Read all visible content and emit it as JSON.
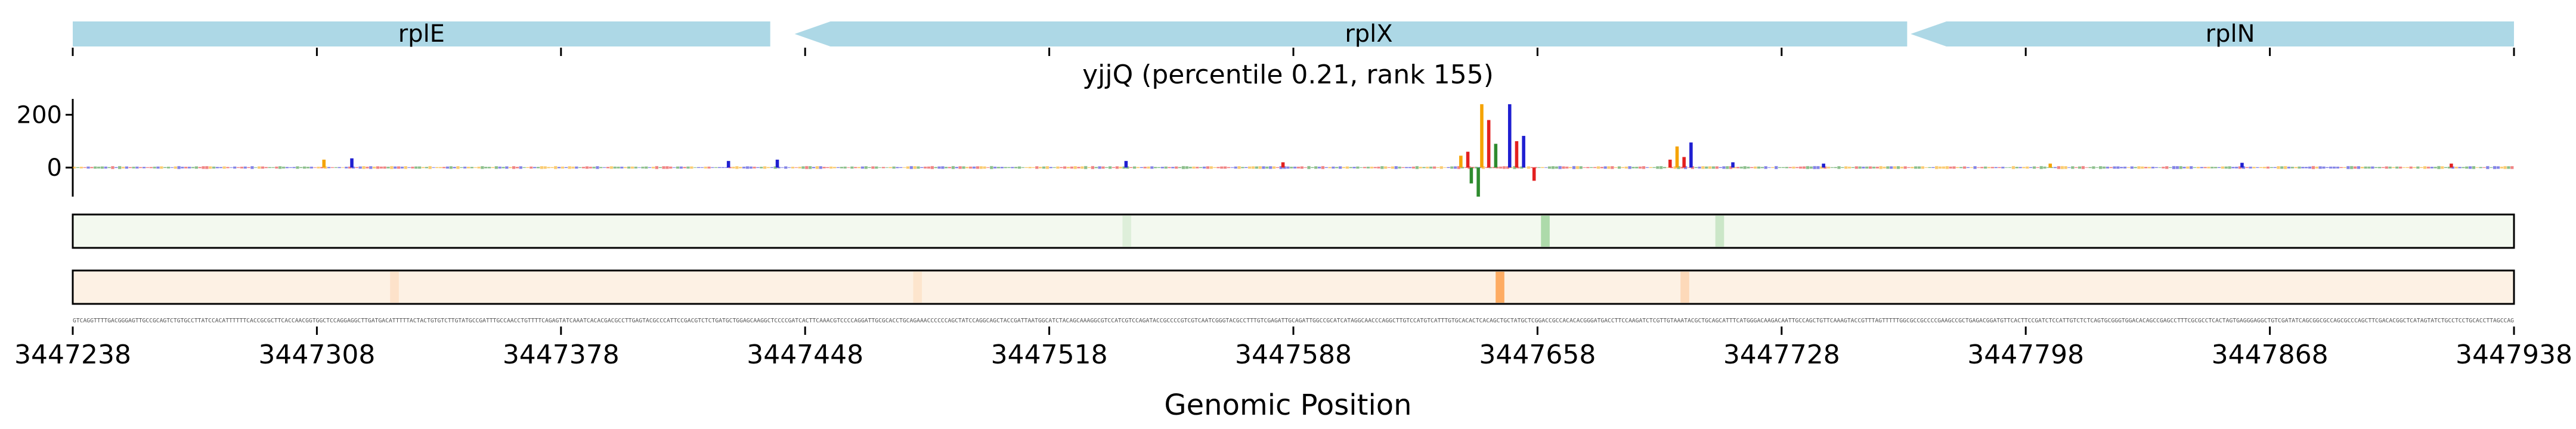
{
  "chart_data": {
    "type": "sequence-logo-track",
    "title": "yjjQ (percentile 0.21, rank 155)",
    "xlabel": "Genomic Position",
    "xlim": [
      3447238,
      3447938
    ],
    "xticks": [
      3447238,
      3447308,
      3447378,
      3447448,
      3447518,
      3447588,
      3447658,
      3447728,
      3447798,
      3447868,
      3447938
    ],
    "genes": [
      {
        "name": "rplE",
        "start": 3447238,
        "end": 3447438,
        "strand": "+"
      },
      {
        "name": "rplX",
        "start": 3447445,
        "end": 3447764,
        "strand": "-"
      },
      {
        "name": "rplN",
        "start": 3447765,
        "end": 3447938,
        "strand": "-"
      }
    ],
    "gene_ticks": [
      3447238,
      3447308,
      3447378,
      3447448,
      3447518,
      3447588,
      3447658,
      3447728,
      3447798,
      3447868,
      3447938
    ],
    "ylim": [
      -110,
      260
    ],
    "yticks": [
      0,
      200
    ],
    "bases": {
      "A": "#2e8b2e",
      "C": "#1f1fd1",
      "G": "#f5a300",
      "T": "#e32020"
    },
    "peaks": [
      {
        "x": 3447642,
        "value": 240,
        "base": "G"
      },
      {
        "x": 3447644,
        "value": 180,
        "base": "T"
      },
      {
        "x": 3447650,
        "value": 240,
        "base": "C"
      },
      {
        "x": 3447654,
        "value": 120,
        "base": "C"
      },
      {
        "x": 3447652,
        "value": 100,
        "base": "T"
      },
      {
        "x": 3447646,
        "value": 90,
        "base": "A"
      },
      {
        "x": 3447638,
        "value": 60,
        "base": "T"
      },
      {
        "x": 3447636,
        "value": 45,
        "base": "G"
      },
      {
        "x": 3447641,
        "value": -110,
        "base": "A"
      },
      {
        "x": 3447639,
        "value": -60,
        "base": "A"
      },
      {
        "x": 3447657,
        "value": -50,
        "base": "T"
      },
      {
        "x": 3447698,
        "value": 80,
        "base": "G"
      },
      {
        "x": 3447702,
        "value": 95,
        "base": "C"
      },
      {
        "x": 3447700,
        "value": 40,
        "base": "T"
      },
      {
        "x": 3447696,
        "value": 30,
        "base": "T"
      },
      {
        "x": 3447310,
        "value": 30,
        "base": "G"
      },
      {
        "x": 3447318,
        "value": 35,
        "base": "C"
      },
      {
        "x": 3447426,
        "value": 25,
        "base": "C"
      },
      {
        "x": 3447440,
        "value": 30,
        "base": "C"
      },
      {
        "x": 3447540,
        "value": 25,
        "base": "C"
      },
      {
        "x": 3447585,
        "value": 20,
        "base": "T"
      },
      {
        "x": 3447714,
        "value": 20,
        "base": "C"
      },
      {
        "x": 3447740,
        "value": 15,
        "base": "C"
      },
      {
        "x": 3447805,
        "value": 15,
        "base": "G"
      },
      {
        "x": 3447860,
        "value": 18,
        "base": "C"
      },
      {
        "x": 3447920,
        "value": 15,
        "base": "T"
      }
    ],
    "heat_track_1": {
      "color": "#2ca02c",
      "hotspots": [
        {
          "x": 3447660,
          "intensity": 0.35
        },
        {
          "x": 3447710,
          "intensity": 0.2
        },
        {
          "x": 3447540,
          "intensity": 0.1
        }
      ]
    },
    "heat_track_2": {
      "color": "#ff7f0e",
      "hotspots": [
        {
          "x": 3447647,
          "intensity": 0.6
        },
        {
          "x": 3447700,
          "intensity": 0.2
        },
        {
          "x": 3447330,
          "intensity": 0.12
        },
        {
          "x": 3447480,
          "intensity": 0.1
        }
      ]
    },
    "sequence": "GTCAGGTTTTGACGGGAGTTGCCGCAGTCTGTGCCTTATCCACATTTTTTCACCGCGCTTCACCAACGGTGGCTCCAGGAGGCTTGATGACATTTTTACTACTGTGTCTTGTATGCCGATTTGCCAACCTGTTTTCAGAGTATCAAATCACACGACGCCTTGAGTACGCCCATTCCGACGTCTCTGATGCTGGAGCAAGGCTCCCCGATCACTTCAAACGTCCCCAGGATTGCGCACCTGCAGAAACCCCCCAGCTATCCAGGCAGCTACCGATTAATGGCATCTACAGCAAAGGCGTCCATCGTCCAGATACCGCCCCGTCGTCAATCGGGTACGCCTTTGTCGAGATTGCAGATTGGCCGCATCATAGGCAACCCAGGCTTGTCCATGTCATTTGTGCACACTCACAGCTGCTATGCTCGGACCGCCACACACGGGATGACCTTCCAAGATCTCGTTGTAAATACGCTGCAGCATTTCATGGGACAAGACAATTGCCAGCTGTTCAAAGTACCGTTTAGTTTTTGGCGCCGCCCCGAAGCCGCTGAGACGGATGTTCACTTCCGATCTCCATTGTCTCTCAGTGCGGGTGGACACAGCCGAGCCTTTCGCGCCTCACTAGTGAGGGAGGCTGTCGATATCAGCGGCGCCAGCGCCCAGCTTCGACACGGCTCATAGTATCTGCCTCCTGCACCTTAGCCAG"
  }
}
